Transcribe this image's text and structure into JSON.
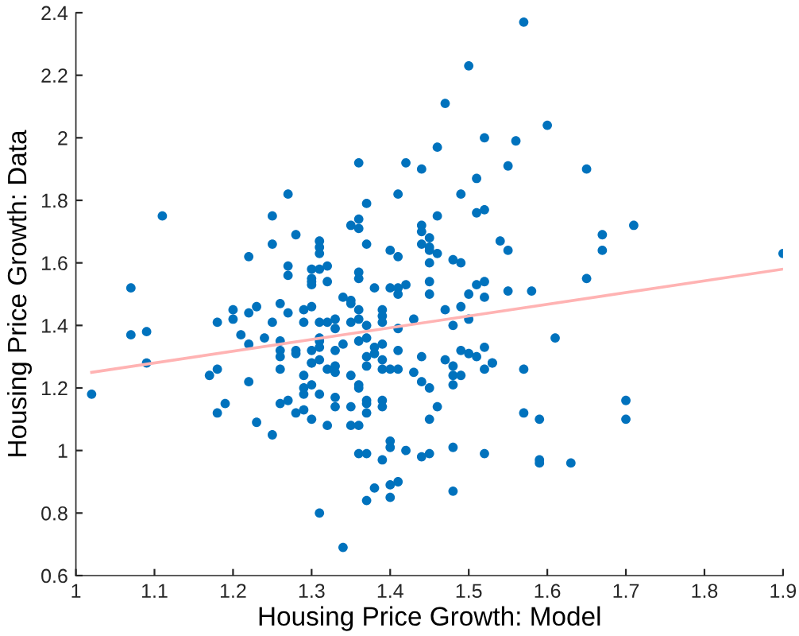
{
  "chart_data": {
    "type": "scatter",
    "xlabel": "Housing Price Growth: Model",
    "ylabel": "Housing Price Growth: Data",
    "xlim": [
      1,
      1.9
    ],
    "xticks": [
      1,
      1.1,
      1.2,
      1.3,
      1.4,
      1.5,
      1.6,
      1.7,
      1.8,
      1.9
    ],
    "ylim": [
      0.6,
      2.4
    ],
    "yticks": [
      0.6,
      0.8,
      1,
      1.2,
      1.4,
      1.6,
      1.8,
      2,
      2.2,
      2.4
    ],
    "grid": false,
    "marker": "circle",
    "series": [
      {
        "color": "#0072bd",
        "x": [
          1.02,
          1.07,
          1.07,
          1.09,
          1.09,
          1.11,
          1.17,
          1.18,
          1.18,
          1.19,
          1.18,
          1.22,
          1.22,
          1.2,
          1.2,
          1.21,
          1.22,
          1.23,
          1.22,
          1.23,
          1.25,
          1.25,
          1.25,
          1.27,
          1.28,
          1.27,
          1.27,
          1.26,
          1.25,
          1.24,
          1.26,
          1.26,
          1.26,
          1.26,
          1.27,
          1.29,
          1.28,
          1.28,
          1.29,
          1.29,
          1.3,
          1.26,
          1.27,
          1.28,
          1.29,
          1.3,
          1.3,
          1.3,
          1.29,
          1.3,
          1.3,
          1.47,
          1.52,
          1.46,
          1.36,
          1.42,
          1.44,
          1.51,
          1.41,
          1.49,
          1.37,
          1.51,
          1.52,
          1.46,
          1.36,
          1.35,
          1.36,
          1.44,
          1.44,
          1.44,
          1.45,
          1.45,
          1.45,
          1.46,
          1.37,
          1.4,
          1.41,
          1.45,
          1.48,
          1.49,
          1.31,
          1.31,
          1.31,
          1.3,
          1.31,
          1.32,
          1.3,
          1.32,
          1.36,
          1.36,
          1.38,
          1.4,
          1.41,
          1.42,
          1.45,
          1.45,
          1.41,
          1.51,
          1.52,
          1.5,
          1.52,
          1.34,
          1.35,
          1.35,
          1.36,
          1.39,
          1.47,
          1.49,
          1.43,
          1.5,
          1.48,
          1.31,
          1.32,
          1.33,
          1.33,
          1.35,
          1.36,
          1.37,
          1.39,
          1.39,
          1.41,
          1.31,
          1.31,
          1.3,
          1.31,
          1.33,
          1.34,
          1.36,
          1.37,
          1.38,
          1.39,
          1.3,
          1.31,
          1.32,
          1.33,
          1.33,
          1.35,
          1.37,
          1.37,
          1.38,
          1.39,
          1.39,
          1.4,
          1.41,
          1.41,
          1.44,
          1.43,
          1.44,
          1.45,
          1.47,
          1.49,
          1.5,
          1.48,
          1.52,
          1.51,
          1.52,
          1.53,
          1.48,
          1.49,
          1.48,
          1.29,
          1.31,
          1.33,
          1.33,
          1.35,
          1.36,
          1.36,
          1.37,
          1.37,
          1.39,
          1.39,
          1.37,
          1.36,
          1.35,
          1.32,
          1.46,
          1.45,
          1.4,
          1.4,
          1.36,
          1.37,
          1.39,
          1.42,
          1.44,
          1.45,
          1.48,
          1.52,
          1.38,
          1.4,
          1.41,
          1.37,
          1.4,
          1.48,
          1.31,
          1.34,
          1.57,
          1.6,
          1.56,
          1.55,
          1.5,
          1.65,
          1.71,
          1.67,
          1.67,
          1.54,
          1.55,
          1.65,
          1.55,
          1.58,
          1.9,
          1.61,
          1.53,
          1.57,
          1.7,
          1.7,
          1.57,
          1.59,
          1.59,
          1.59,
          1.63
        ],
        "values": [
          1.18,
          1.52,
          1.37,
          1.38,
          1.28,
          1.75,
          1.24,
          1.26,
          1.12,
          1.15,
          1.41,
          1.22,
          1.62,
          1.45,
          1.42,
          1.37,
          1.44,
          1.46,
          1.34,
          1.09,
          1.66,
          1.75,
          1.05,
          1.82,
          1.69,
          1.59,
          1.56,
          1.47,
          1.41,
          1.36,
          1.35,
          1.32,
          1.3,
          1.26,
          1.44,
          1.41,
          1.32,
          1.31,
          1.24,
          1.2,
          1.21,
          1.15,
          1.16,
          1.12,
          1.13,
          1.1,
          1.54,
          1.55,
          1.45,
          1.46,
          1.28,
          2.11,
          2.0,
          1.97,
          1.92,
          1.92,
          1.9,
          1.87,
          1.82,
          1.82,
          1.79,
          1.76,
          1.77,
          1.75,
          1.74,
          1.72,
          1.71,
          1.72,
          1.7,
          1.66,
          1.68,
          1.65,
          1.64,
          1.63,
          1.66,
          1.64,
          1.62,
          1.6,
          1.61,
          1.6,
          1.67,
          1.65,
          1.63,
          1.58,
          1.58,
          1.59,
          1.53,
          1.54,
          1.57,
          1.55,
          1.52,
          1.52,
          1.52,
          1.53,
          1.54,
          1.5,
          1.5,
          1.53,
          1.54,
          1.5,
          1.49,
          1.49,
          1.48,
          1.47,
          1.45,
          1.45,
          1.45,
          1.46,
          1.42,
          1.42,
          1.4,
          1.41,
          1.41,
          1.42,
          1.39,
          1.41,
          1.42,
          1.4,
          1.41,
          1.43,
          1.39,
          1.35,
          1.36,
          1.32,
          1.33,
          1.32,
          1.34,
          1.35,
          1.36,
          1.33,
          1.34,
          1.28,
          1.29,
          1.26,
          1.27,
          1.25,
          1.24,
          1.3,
          1.27,
          1.31,
          1.29,
          1.26,
          1.26,
          1.26,
          1.32,
          1.3,
          1.25,
          1.22,
          1.2,
          1.29,
          1.32,
          1.31,
          1.27,
          1.33,
          1.3,
          1.26,
          1.28,
          1.24,
          1.24,
          1.21,
          1.18,
          1.18,
          1.17,
          1.14,
          1.14,
          1.21,
          1.2,
          1.16,
          1.15,
          1.16,
          1.14,
          1.12,
          1.08,
          1.08,
          1.08,
          1.14,
          1.1,
          1.03,
          1.01,
          0.99,
          0.99,
          0.97,
          1.0,
          0.98,
          0.99,
          1.01,
          0.99,
          0.88,
          0.89,
          0.9,
          0.84,
          0.85,
          0.87,
          0.8,
          0.69,
          2.37,
          2.04,
          1.99,
          1.91,
          2.23,
          1.9,
          1.72,
          1.69,
          1.64,
          1.67,
          1.64,
          1.55,
          1.51,
          1.51,
          1.63,
          1.36,
          1.28,
          1.26,
          1.16,
          1.1,
          1.12,
          1.1,
          0.97,
          0.96,
          0.96
        ]
      },
      {
        "type": "line",
        "marker": "none",
        "color": "#ffb3b3",
        "x": [
          1.02,
          1.9
        ],
        "values": [
          1.25,
          1.58
        ]
      }
    ]
  }
}
